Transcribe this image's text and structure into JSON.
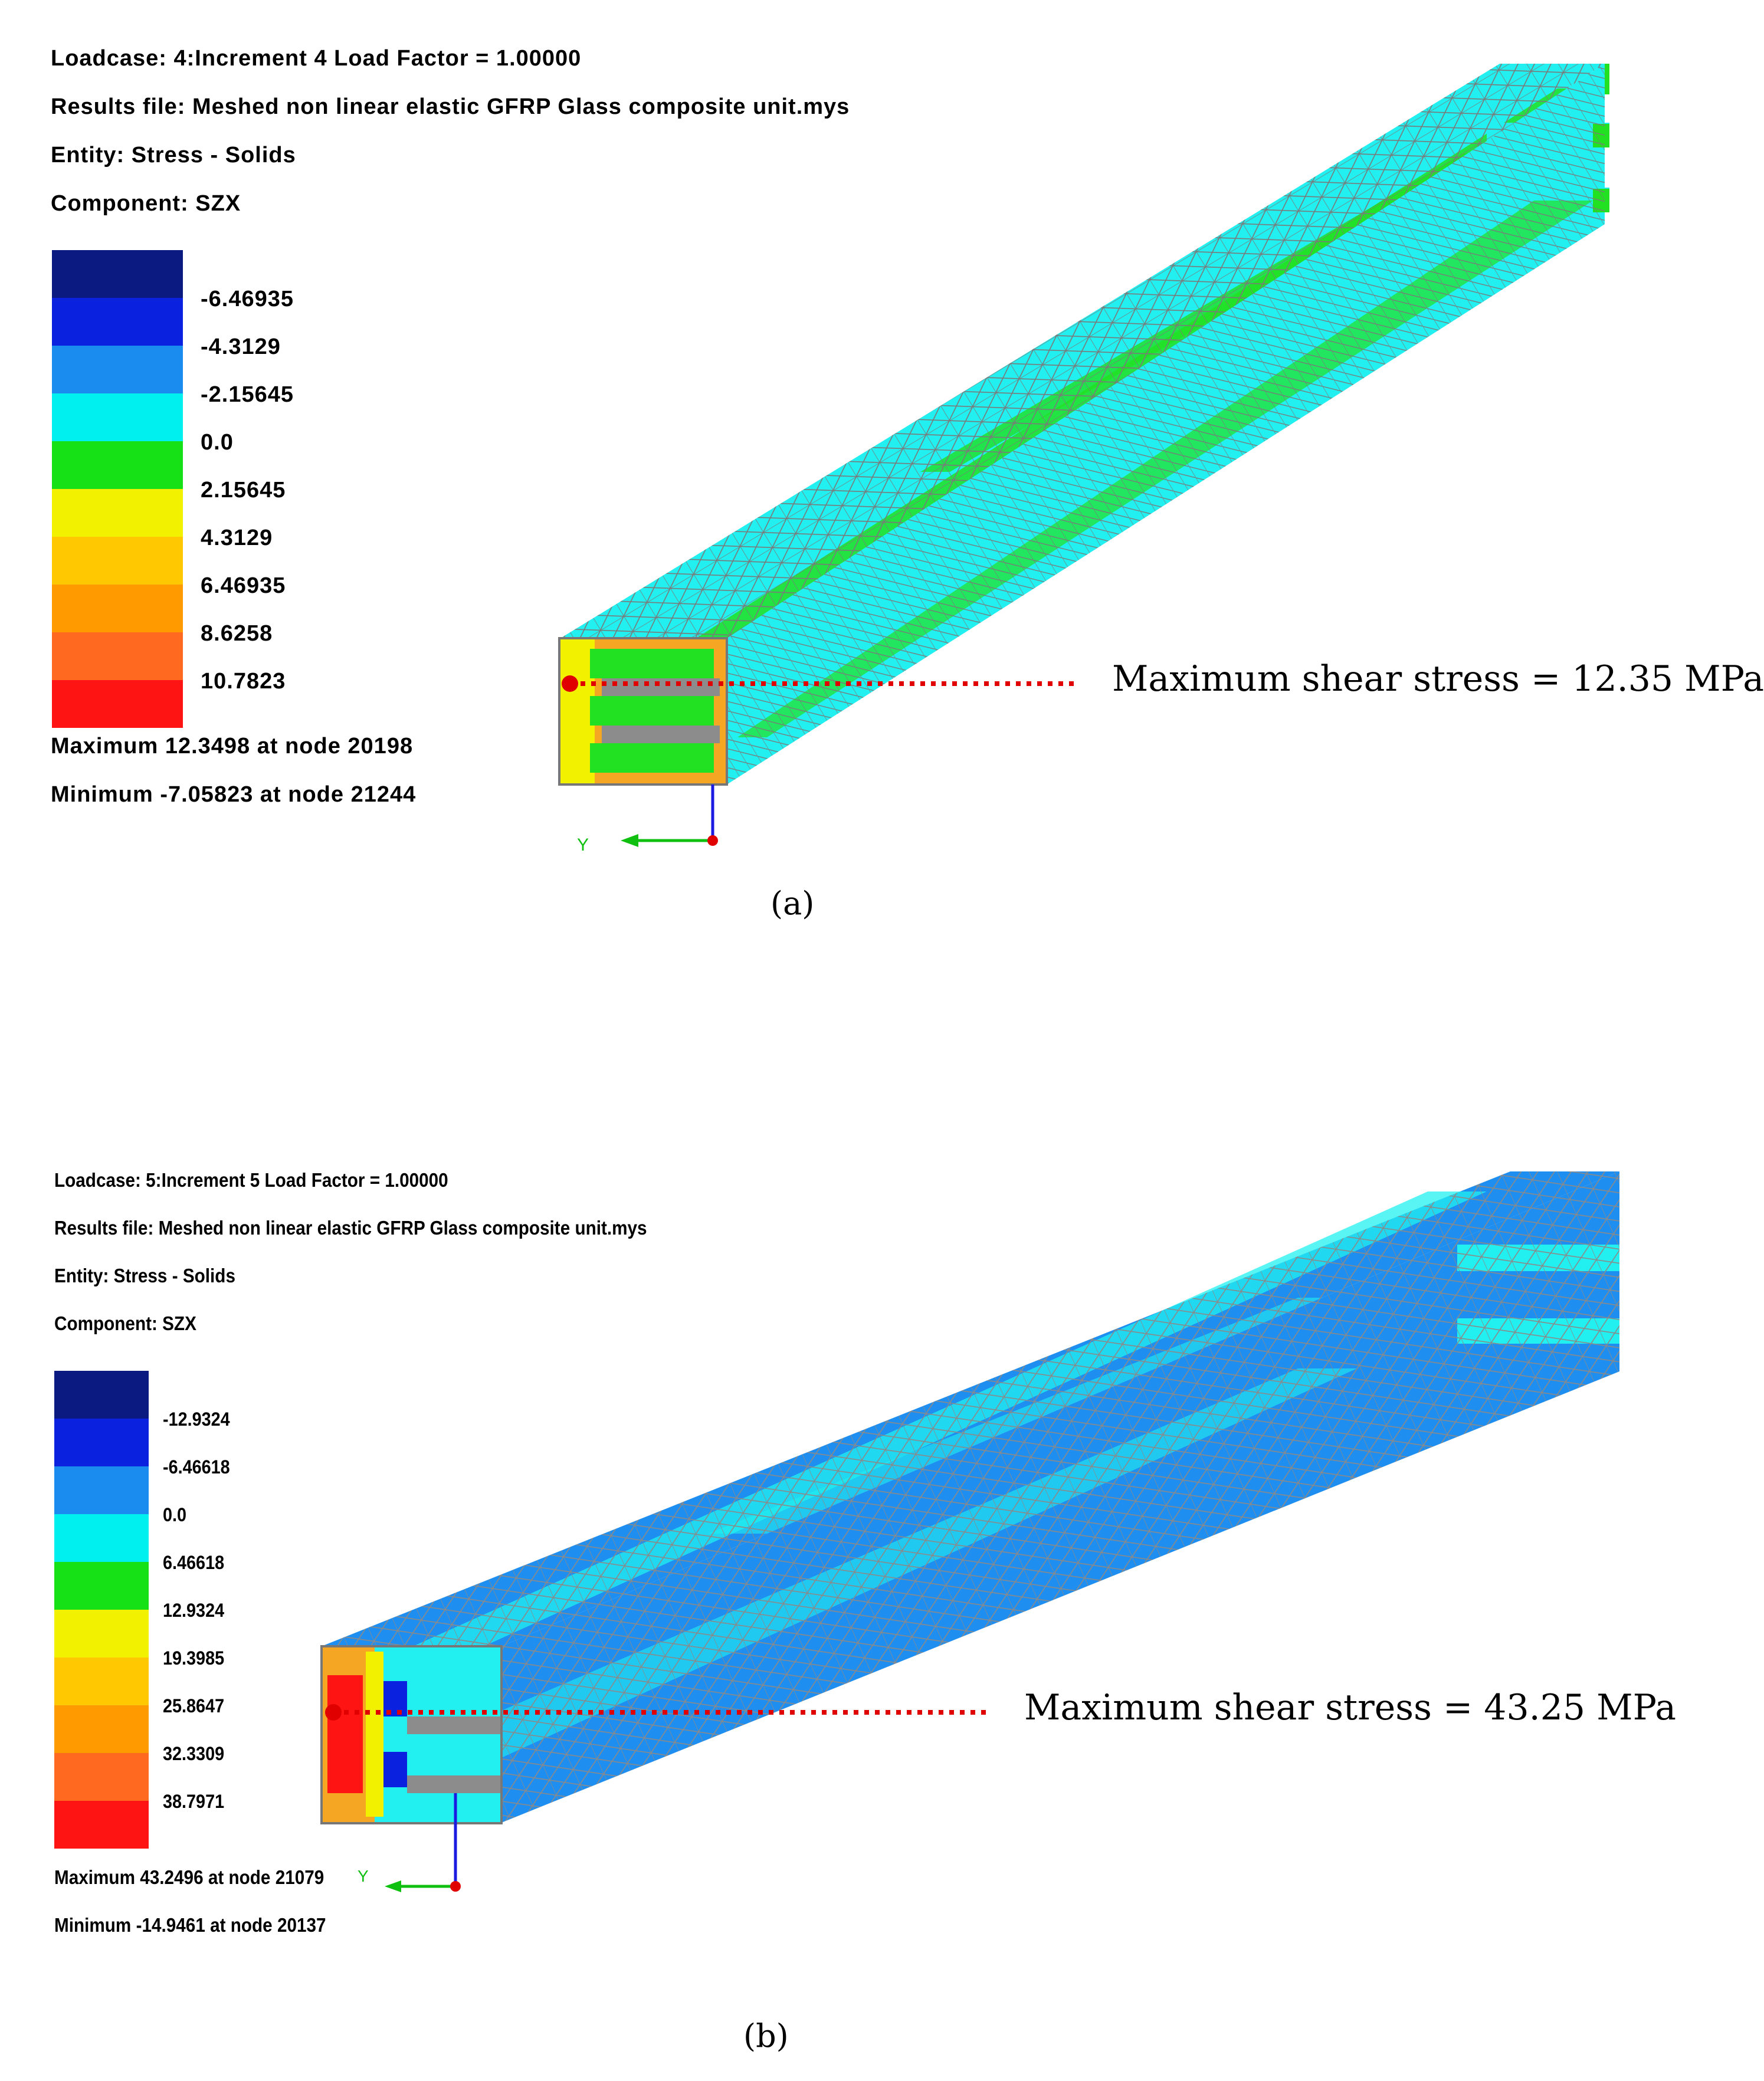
{
  "panels": [
    {
      "loadcase": "Loadcase: 4:Increment 4 Load Factor = 1.00000",
      "results_file": "Results file: Meshed non linear elastic GFRP Glass composite unit.mys",
      "entity": "Entity: Stress - Solids",
      "component": "Component: SZX",
      "legend_colors": [
        "#0a1a80",
        "#0a22e0",
        "#1a8cf0",
        "#00f0f0",
        "#16e016",
        "#f2f200",
        "#ffc800",
        "#ff9a00",
        "#ff6a20",
        "#ff1414"
      ],
      "legend_values": [
        "-6.46935",
        "-4.3129",
        "-2.15645",
        "0.0",
        "2.15645",
        "4.3129",
        "6.46935",
        "8.6258",
        "10.7823"
      ],
      "maximum": "Maximum 12.3498 at node 20198",
      "minimum": "Minimum -7.05823 at node 21244",
      "annotation": "Maximum shear stress = 12.35  MPa",
      "axis_label": "Y",
      "caption": "(a)",
      "colors": {
        "main": "#22f0f0",
        "secondary": "#22e022"
      }
    },
    {
      "loadcase": "Loadcase: 5:Increment 5 Load Factor = 1.00000",
      "results_file": "Results file: Meshed non linear elastic GFRP Glass composite unit.mys",
      "entity": "Entity: Stress - Solids",
      "component": "Component: SZX",
      "legend_colors": [
        "#0a1a80",
        "#0a22e0",
        "#1a8cf0",
        "#00f0f0",
        "#16e016",
        "#f2f200",
        "#ffc800",
        "#ff9a00",
        "#ff6a20",
        "#ff1414"
      ],
      "legend_values": [
        "-12.9324",
        "-6.46618",
        "0.0",
        "6.46618",
        "12.9324",
        "19.3985",
        "25.8647",
        "32.3309",
        "38.7971"
      ],
      "maximum": "Maximum 43.2496 at node 21079",
      "minimum": "Minimum -14.9461 at node 20137",
      "annotation": "Maximum shear stress = 43.25  MPa",
      "axis_label": "Y",
      "caption": "(b)",
      "colors": {
        "main": "#1e8ef0",
        "secondary": "#22f0f0"
      }
    }
  ]
}
